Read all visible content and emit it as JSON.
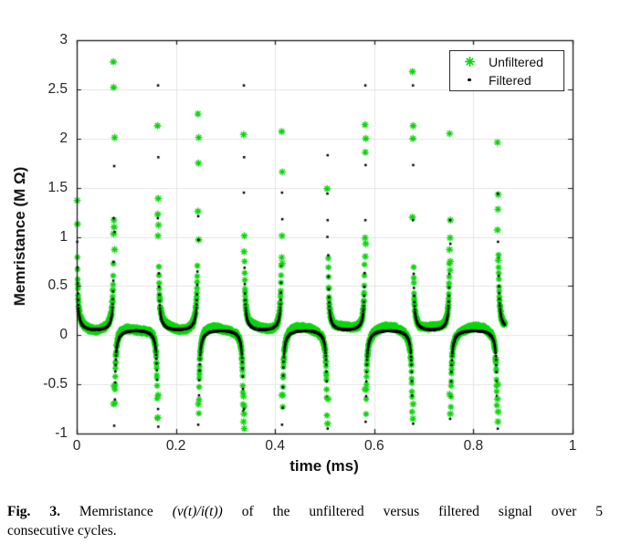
{
  "figure": {
    "caption": {
      "fig_label": "Fig. 3.",
      "line1_pre": " Memristance ",
      "math": "(v(t)/i(t))",
      "line1_post": " of the unfiltered versus filtered signal over 5",
      "line2": "consecutive cycles."
    }
  },
  "chart_data": {
    "type": "scatter",
    "title": "",
    "xlabel": "time (ms)",
    "ylabel": "Memristance (M Ω)",
    "xlim": [
      0,
      1
    ],
    "ylim": [
      -1,
      3
    ],
    "grid": true,
    "grid_color": "#e5e5e5",
    "axis_color": "#1a1a1a",
    "tick_label_color": "#262626",
    "background": "#ffffff",
    "xticks": {
      "values": [
        0,
        0.2,
        0.4,
        0.6,
        0.8,
        1
      ],
      "labels": [
        "0",
        "0.2",
        "0.4",
        "0.6",
        "0.8",
        "1"
      ]
    },
    "yticks": {
      "values": [
        -1,
        -0.5,
        0,
        0.5,
        1,
        1.5,
        2,
        2.5,
        3
      ],
      "labels": [
        "-1",
        "-0.5",
        "0",
        "0.5",
        "1",
        "1.5",
        "2",
        "2.5",
        "3"
      ]
    },
    "legend": {
      "position": "top-right",
      "items": [
        {
          "label": "Unfiltered",
          "marker": "asterisk",
          "color": "#0bd60b"
        },
        {
          "label": "Filtered",
          "marker": "dot",
          "color": "#000000"
        }
      ]
    },
    "signal": {
      "description": "Memristance v(t)/i(t) over 5 consecutive cycles (10 half-cycles, 0 to ~0.86 ms): near-zero plateaus (~0.05 MΩ) alternating above/below zero, with sampled spikes toward ±infinity at each current zero-crossing; unfiltered (green) is a noisy band around the filtered (black) curve.",
      "transitions": [
        0,
        0.0755,
        0.164,
        0.245,
        0.337,
        0.414,
        0.506,
        0.582,
        0.678,
        0.753,
        0.849,
        0.944
      ],
      "t_end": 0.8635,
      "first_segment": "positive"
    },
    "series": [
      {
        "name": "Unfiltered",
        "marker": "asterisk",
        "color": "#0bd60b",
        "sample_dt": 0.00028,
        "base_pos": 0.07,
        "base_neg": 0.068,
        "spike_k": 0.014,
        "noise": 0.027,
        "wiggle": 0.018,
        "cap_high": 0.82,
        "cap_low": -0.85,
        "seed": 7,
        "extra_points": [
          [
            0.001,
            1.37
          ],
          [
            0.0015,
            1.13
          ],
          [
            0.074,
            2.78
          ],
          [
            0.0745,
            2.52
          ],
          [
            0.0765,
            2.01
          ],
          [
            0.075,
            1.17
          ],
          [
            0.0755,
            1.1
          ],
          [
            0.0745,
            1.03
          ],
          [
            0.0765,
            0.87
          ],
          [
            0.0755,
            -0.52
          ],
          [
            0.0745,
            -0.7
          ],
          [
            0.163,
            2.13
          ],
          [
            0.1645,
            1.39
          ],
          [
            0.1635,
            1.23
          ],
          [
            0.165,
            1.12
          ],
          [
            0.164,
            1.01
          ],
          [
            0.1645,
            -0.61
          ],
          [
            0.1635,
            -0.84
          ],
          [
            0.2445,
            2.25
          ],
          [
            0.246,
            2.01
          ],
          [
            0.2455,
            1.75
          ],
          [
            0.2445,
            1.26
          ],
          [
            0.246,
            0.97
          ],
          [
            0.2455,
            -0.7
          ],
          [
            0.3365,
            2.04
          ],
          [
            0.338,
            1.01
          ],
          [
            0.3375,
            0.85
          ],
          [
            0.3365,
            -0.62
          ],
          [
            0.338,
            -0.72
          ],
          [
            0.3375,
            -0.8
          ],
          [
            0.3365,
            -0.88
          ],
          [
            0.338,
            -0.95
          ],
          [
            0.4135,
            2.07
          ],
          [
            0.4145,
            1.66
          ],
          [
            0.414,
            1.01
          ],
          [
            0.4135,
            0.79
          ],
          [
            0.4145,
            0.73
          ],
          [
            0.414,
            -0.61
          ],
          [
            0.505,
            1.49
          ],
          [
            0.507,
            -0.65
          ],
          [
            0.506,
            -0.9
          ],
          [
            0.5815,
            2.14
          ],
          [
            0.583,
            2.0
          ],
          [
            0.582,
            1.86
          ],
          [
            0.5815,
            0.99
          ],
          [
            0.583,
            0.93
          ],
          [
            0.582,
            0.8
          ],
          [
            0.5815,
            -0.55
          ],
          [
            0.677,
            2.68
          ],
          [
            0.6785,
            2.13
          ],
          [
            0.678,
            2.0
          ],
          [
            0.677,
            1.2
          ],
          [
            0.6785,
            -0.7
          ],
          [
            0.678,
            -0.85
          ],
          [
            0.752,
            2.05
          ],
          [
            0.7535,
            1.17
          ],
          [
            0.753,
            0.99
          ],
          [
            0.752,
            0.87
          ],
          [
            0.7535,
            0.75
          ],
          [
            0.753,
            0.66
          ],
          [
            0.752,
            -0.6
          ],
          [
            0.7535,
            -0.8
          ],
          [
            0.8485,
            1.96
          ],
          [
            0.85,
            1.43
          ],
          [
            0.8495,
            1.28
          ],
          [
            0.8485,
            1.07
          ],
          [
            0.85,
            0.76
          ],
          [
            0.8495,
            -0.5
          ],
          [
            0.8485,
            -0.65
          ],
          [
            0.85,
            -0.78
          ],
          [
            0.8495,
            -0.88
          ]
        ]
      },
      {
        "name": "Filtered",
        "marker": "dot",
        "color": "#000000",
        "sample_dt": 0.00045,
        "base_pos": 0.058,
        "base_neg": 0.045,
        "spike_k": 0.012,
        "noise": 0.004,
        "wiggle": 0,
        "cap_high": 0.82,
        "cap_low": -0.85,
        "seed": 3,
        "extra_points": [
          [
            0.001,
            0.95
          ],
          [
            0.0755,
            1.72
          ],
          [
            0.0745,
            1.19
          ],
          [
            0.0765,
            1.05
          ],
          [
            0.0755,
            -0.92
          ],
          [
            0.164,
            2.54
          ],
          [
            0.1645,
            1.81
          ],
          [
            0.1635,
            1.19
          ],
          [
            0.164,
            -0.75
          ],
          [
            0.1645,
            -0.93
          ],
          [
            0.245,
            1.21
          ],
          [
            0.2455,
            0.97
          ],
          [
            0.245,
            -0.91
          ],
          [
            0.337,
            2.54
          ],
          [
            0.3375,
            1.81
          ],
          [
            0.337,
            1.45
          ],
          [
            0.3375,
            -0.75
          ],
          [
            0.414,
            1.45
          ],
          [
            0.4145,
            1.18
          ],
          [
            0.414,
            -0.91
          ],
          [
            0.506,
            1.83
          ],
          [
            0.5055,
            1.44
          ],
          [
            0.506,
            1.17
          ],
          [
            0.5055,
            1.0
          ],
          [
            0.506,
            -0.95
          ],
          [
            0.582,
            2.54
          ],
          [
            0.5825,
            1.73
          ],
          [
            0.582,
            1.17
          ],
          [
            0.5825,
            -0.88
          ],
          [
            0.678,
            2.54
          ],
          [
            0.6785,
            1.73
          ],
          [
            0.678,
            1.17
          ],
          [
            0.6785,
            -0.9
          ],
          [
            0.753,
            1.17
          ],
          [
            0.7535,
            0.93
          ],
          [
            0.753,
            -0.85
          ],
          [
            0.849,
            1.44
          ],
          [
            0.8495,
            0.95
          ],
          [
            0.849,
            -0.95
          ]
        ]
      }
    ]
  }
}
